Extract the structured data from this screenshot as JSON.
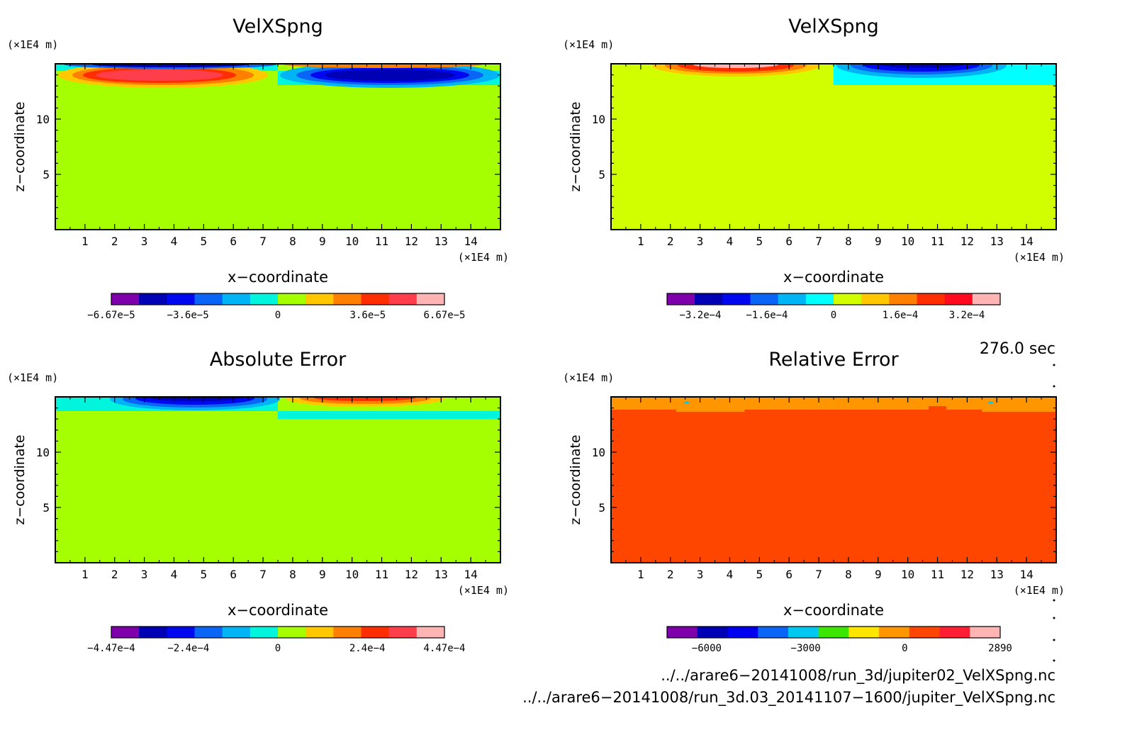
{
  "colors": {
    "vel": [
      "#7d00aa",
      "#0000b4",
      "#0008f0",
      "#0a64f5",
      "#00b4f5",
      "#00f5dc",
      "#a5ff00",
      "#ffc800",
      "#ff8000",
      "#ff2e00",
      "#ff3e4c",
      "#ffb4b4"
    ],
    "vel2": [
      "#7d00aa",
      "#0000b4",
      "#0008f0",
      "#0a64f5",
      "#00b4f5",
      "#00ffff",
      "#d2ff00",
      "#ffc800",
      "#ff8000",
      "#ff2e00",
      "#ff0a1e",
      "#ffb4b4"
    ],
    "rel": [
      "#7d00aa",
      "#0000b4",
      "#0000f0",
      "#0a64f5",
      "#00c8f0",
      "#3ce600",
      "#ffe600",
      "#ff9600",
      "#ff4600",
      "#ff1e32",
      "#ffb4b4"
    ],
    "vel_bg": "#a5ff00",
    "vel2_bg": "#d2ff00",
    "rel_bg": "#ff4600",
    "rel_band": "#ff9600"
  },
  "chart_data": [
    {
      "type": "heatmap",
      "title": "VelXSpng",
      "xlabel": "x−coordinate",
      "ylabel": "z−coordinate",
      "x_unit": "(×1E4 m)",
      "z_unit": "(×1E4 m)",
      "xlim": [
        0,
        15
      ],
      "zlim": [
        0,
        15
      ],
      "x_ticks": [
        1,
        2,
        3,
        4,
        5,
        6,
        7,
        8,
        9,
        10,
        11,
        12,
        13,
        14
      ],
      "z_ticks": [
        5,
        10
      ],
      "colorbar": {
        "min": -6.67e-05,
        "max": 6.67e-05,
        "labels": [
          "−6.67e−5",
          "−3.6e−5",
          "0",
          "3.6e−5",
          "6.67e−5"
        ],
        "label_values": [
          -6.67e-05,
          -3.6e-05,
          0,
          3.6e-05,
          6.67e-05
        ]
      }
    },
    {
      "type": "heatmap",
      "title": "VelXSpng",
      "xlabel": "x−coordinate",
      "ylabel": "z−coordinate",
      "x_unit": "(×1E4 m)",
      "z_unit": "(×1E4 m)",
      "xlim": [
        0,
        15
      ],
      "zlim": [
        0,
        15
      ],
      "x_ticks": [
        1,
        2,
        3,
        4,
        5,
        6,
        7,
        8,
        9,
        10,
        11,
        12,
        13,
        14
      ],
      "z_ticks": [
        5,
        10
      ],
      "colorbar": {
        "min": -0.0004,
        "max": 0.0004,
        "labels": [
          "−3.2e−4",
          "−1.6e−4",
          "0",
          "1.6e−4",
          "3.2e−4"
        ],
        "label_values": [
          -0.00032,
          -0.00016,
          0,
          0.00016,
          0.00032
        ]
      }
    },
    {
      "type": "heatmap",
      "title": "Absolute Error",
      "xlabel": "x−coordinate",
      "ylabel": "z−coordinate",
      "x_unit": "(×1E4 m)",
      "z_unit": "(×1E4 m)",
      "xlim": [
        0,
        15
      ],
      "zlim": [
        0,
        15
      ],
      "x_ticks": [
        1,
        2,
        3,
        4,
        5,
        6,
        7,
        8,
        9,
        10,
        11,
        12,
        13,
        14
      ],
      "z_ticks": [
        5,
        10
      ],
      "colorbar": {
        "min": -0.000447,
        "max": 0.000447,
        "labels": [
          "−4.47e−4",
          "−2.4e−4",
          "0",
          "2.4e−4",
          "4.47e−4"
        ],
        "label_values": [
          -0.000447,
          -0.00024,
          0,
          0.00024,
          0.000447
        ]
      }
    },
    {
      "type": "heatmap",
      "title": "Relative Error",
      "xlabel": "x−coordinate",
      "ylabel": "z−coordinate",
      "x_unit": "(×1E4 m)",
      "z_unit": "(×1E4 m)",
      "xlim": [
        0,
        15
      ],
      "zlim": [
        0,
        15
      ],
      "x_ticks": [
        1,
        2,
        3,
        4,
        5,
        6,
        7,
        8,
        9,
        10,
        11,
        12,
        13,
        14
      ],
      "z_ticks": [
        5,
        10
      ],
      "colorbar": {
        "min": -7200,
        "max": 2890,
        "labels": [
          "−6000",
          "−3000",
          "0",
          "2890"
        ],
        "label_values": [
          -6000,
          -3000,
          0,
          2890
        ]
      }
    }
  ],
  "time_label": "276.0 sec",
  "file_paths": [
    "../../arare6−20141008/run_3d/jupiter02_VelXSpng.nc",
    "../../arare6−20141008/run_3d.03_20141107−1600/jupiter_VelXSpng.nc"
  ]
}
